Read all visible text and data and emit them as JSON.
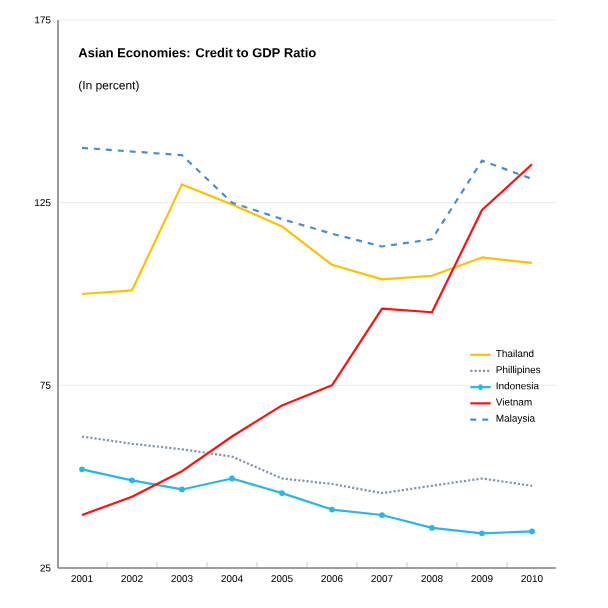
{
  "chart_data": {
    "type": "line",
    "title": "Asian Economies: Credit to GDP Ratio",
    "subtitle": "(In percent)",
    "categories": [
      "2001",
      "2002",
      "2003",
      "2004",
      "2005",
      "2006",
      "2007",
      "2008",
      "2009",
      "2010"
    ],
    "series": [
      {
        "name": "Thailand",
        "color": "#ffc000",
        "line_style": "solid",
        "values": [
          100,
          101,
          130,
          124.5,
          118.5,
          108,
          104,
          105,
          110,
          108.5
        ]
      },
      {
        "name": "Phillipines",
        "color": "#8096b0",
        "line_style": "dotted",
        "values": [
          61,
          59,
          57.5,
          55.5,
          49.5,
          48,
          45.5,
          47.5,
          49.5,
          47.5
        ]
      },
      {
        "name": "Indonesia",
        "color": "#29b6ea",
        "line_style": "solid",
        "marker": "circle",
        "values": [
          52,
          49,
          46.5,
          49.5,
          45.5,
          41,
          39.5,
          36,
          34.5,
          35
        ]
      },
      {
        "name": "Vietnam",
        "color": "#ff1010",
        "line_style": "solid",
        "values": [
          39.5,
          44.5,
          51.5,
          61,
          69.5,
          75,
          96,
          95,
          123,
          135.5
        ]
      },
      {
        "name": "Malaysia",
        "color": "#4a8fd0",
        "line_style": "dashed",
        "values": [
          140,
          139,
          138,
          125,
          120.5,
          116.5,
          113,
          115,
          136.5,
          131.5
        ]
      }
    ],
    "ylim": [
      25,
      175
    ],
    "yticks": [
      25,
      75,
      125,
      175
    ],
    "grid": "y",
    "legend": "right"
  }
}
